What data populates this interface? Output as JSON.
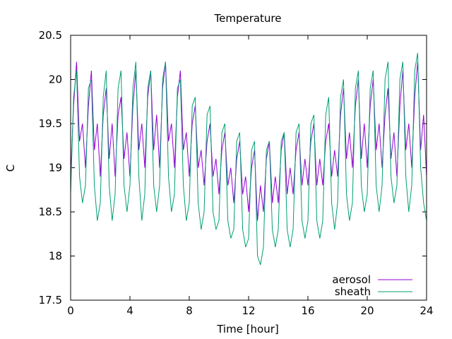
{
  "chart_data": {
    "type": "line",
    "title": "Temperature",
    "xlabel": "Time [hour]",
    "ylabel": "C",
    "xlim": [
      0,
      24
    ],
    "ylim": [
      17.5,
      20.5
    ],
    "xticks": [
      0,
      4,
      8,
      12,
      16,
      20,
      24
    ],
    "yticks": [
      17.5,
      18,
      18.5,
      19,
      19.5,
      20,
      20.5
    ],
    "xtick_labels": [
      "0",
      "4",
      "8",
      "12",
      "16",
      "20",
      "24"
    ],
    "ytick_labels": [
      "17.5",
      "18",
      "18.5",
      "19",
      "19.5",
      "20",
      "20.5"
    ],
    "grid": false,
    "legend_position": "bottom-right",
    "series": [
      {
        "name": "aerosol",
        "color": "#9400d3",
        "x": [
          0.0,
          0.2,
          0.4,
          0.6,
          0.8,
          1.0,
          1.2,
          1.4,
          1.6,
          1.8,
          2.0,
          2.2,
          2.4,
          2.6,
          2.8,
          3.0,
          3.2,
          3.4,
          3.6,
          3.8,
          4.0,
          4.2,
          4.4,
          4.6,
          4.8,
          5.0,
          5.2,
          5.4,
          5.6,
          5.8,
          6.0,
          6.2,
          6.4,
          6.6,
          6.8,
          7.0,
          7.2,
          7.4,
          7.6,
          7.8,
          8.0,
          8.2,
          8.4,
          8.6,
          8.8,
          9.0,
          9.2,
          9.4,
          9.6,
          9.8,
          10.0,
          10.2,
          10.4,
          10.6,
          10.8,
          11.0,
          11.2,
          11.4,
          11.6,
          11.8,
          12.0,
          12.2,
          12.4,
          12.6,
          12.8,
          13.0,
          13.2,
          13.4,
          13.6,
          13.8,
          14.0,
          14.2,
          14.4,
          14.6,
          14.8,
          15.0,
          15.2,
          15.4,
          15.6,
          15.8,
          16.0,
          16.2,
          16.4,
          16.6,
          16.8,
          17.0,
          17.2,
          17.4,
          17.6,
          17.8,
          18.0,
          18.2,
          18.4,
          18.6,
          18.8,
          19.0,
          19.2,
          19.4,
          19.6,
          19.8,
          20.0,
          20.2,
          20.4,
          20.6,
          20.8,
          21.0,
          21.2,
          21.4,
          21.6,
          21.8,
          22.0,
          22.2,
          22.4,
          22.6,
          22.8,
          23.0,
          23.2,
          23.4,
          23.6,
          23.8,
          24.0
        ],
        "values": [
          18.9,
          19.7,
          20.2,
          19.3,
          19.5,
          19.0,
          19.7,
          20.1,
          19.2,
          19.5,
          18.9,
          19.6,
          19.9,
          19.1,
          19.5,
          18.9,
          19.6,
          19.8,
          19.1,
          19.4,
          18.9,
          19.7,
          20.1,
          19.2,
          19.5,
          19.0,
          19.8,
          20.1,
          19.2,
          19.6,
          19.0,
          19.9,
          20.2,
          19.3,
          19.5,
          19.0,
          19.8,
          20.1,
          19.2,
          19.4,
          18.9,
          19.5,
          19.7,
          19.0,
          19.2,
          18.8,
          19.3,
          19.5,
          18.9,
          19.1,
          18.7,
          19.2,
          19.4,
          18.8,
          19.0,
          18.6,
          19.1,
          19.3,
          18.7,
          18.9,
          18.5,
          19.0,
          19.2,
          18.4,
          18.8,
          18.5,
          19.1,
          19.3,
          18.6,
          18.9,
          18.6,
          19.2,
          19.4,
          18.7,
          19.0,
          18.7,
          19.2,
          19.4,
          18.8,
          19.1,
          18.8,
          19.3,
          19.5,
          18.8,
          19.1,
          18.8,
          19.3,
          19.5,
          18.9,
          19.2,
          18.9,
          19.6,
          19.9,
          19.1,
          19.4,
          19.0,
          19.7,
          20.0,
          19.1,
          19.5,
          19.0,
          19.7,
          20.0,
          19.2,
          19.5,
          19.0,
          19.6,
          19.9,
          19.1,
          19.4,
          18.9,
          19.7,
          20.1,
          19.2,
          19.5,
          19.0,
          19.8,
          20.2,
          19.2,
          19.6,
          18.9
        ]
      },
      {
        "name": "sheath",
        "color": "#009e73",
        "x": [
          0.0,
          0.2,
          0.4,
          0.6,
          0.8,
          1.0,
          1.2,
          1.4,
          1.6,
          1.8,
          2.0,
          2.2,
          2.4,
          2.6,
          2.8,
          3.0,
          3.2,
          3.4,
          3.6,
          3.8,
          4.0,
          4.2,
          4.4,
          4.6,
          4.8,
          5.0,
          5.2,
          5.4,
          5.6,
          5.8,
          6.0,
          6.2,
          6.4,
          6.6,
          6.8,
          7.0,
          7.2,
          7.4,
          7.6,
          7.8,
          8.0,
          8.2,
          8.4,
          8.6,
          8.8,
          9.0,
          9.2,
          9.4,
          9.6,
          9.8,
          10.0,
          10.2,
          10.4,
          10.6,
          10.8,
          11.0,
          11.2,
          11.4,
          11.6,
          11.8,
          12.0,
          12.2,
          12.4,
          12.6,
          12.8,
          13.0,
          13.2,
          13.4,
          13.6,
          13.8,
          14.0,
          14.2,
          14.4,
          14.6,
          14.8,
          15.0,
          15.2,
          15.4,
          15.6,
          15.8,
          16.0,
          16.2,
          16.4,
          16.6,
          16.8,
          17.0,
          17.2,
          17.4,
          17.6,
          17.8,
          18.0,
          18.2,
          18.4,
          18.6,
          18.8,
          19.0,
          19.2,
          19.4,
          19.6,
          19.8,
          20.0,
          20.2,
          20.4,
          20.6,
          20.8,
          21.0,
          21.2,
          21.4,
          21.6,
          21.8,
          22.0,
          22.2,
          22.4,
          22.6,
          22.8,
          23.0,
          23.2,
          23.4,
          23.6,
          23.8,
          24.0
        ],
        "values": [
          18.7,
          19.8,
          20.1,
          18.9,
          18.6,
          18.8,
          19.9,
          20.0,
          18.8,
          18.4,
          18.6,
          19.8,
          20.1,
          18.8,
          18.4,
          18.7,
          19.9,
          20.1,
          18.8,
          18.5,
          18.8,
          19.9,
          20.2,
          18.9,
          18.4,
          18.7,
          19.9,
          20.1,
          18.8,
          18.5,
          18.8,
          20.0,
          20.2,
          18.9,
          18.5,
          18.7,
          19.9,
          20.0,
          18.8,
          18.4,
          18.6,
          19.7,
          19.8,
          18.6,
          18.3,
          18.5,
          19.6,
          19.7,
          18.5,
          18.3,
          18.4,
          19.4,
          19.5,
          18.4,
          18.2,
          18.3,
          19.3,
          19.4,
          18.3,
          18.1,
          18.2,
          19.2,
          19.3,
          18.0,
          17.9,
          18.1,
          19.2,
          19.3,
          18.3,
          18.1,
          18.3,
          19.3,
          19.4,
          18.3,
          18.1,
          18.3,
          19.4,
          19.5,
          18.4,
          18.2,
          18.4,
          19.5,
          19.6,
          18.4,
          18.2,
          18.4,
          19.6,
          19.8,
          18.6,
          18.3,
          18.6,
          19.8,
          20.0,
          18.7,
          18.4,
          18.6,
          19.9,
          20.1,
          18.8,
          18.5,
          18.7,
          19.9,
          20.1,
          18.8,
          18.5,
          18.8,
          20.0,
          20.2,
          18.9,
          18.6,
          18.8,
          20.0,
          20.2,
          18.9,
          18.5,
          18.8,
          20.1,
          20.3,
          19.0,
          18.6,
          18.4
        ]
      }
    ]
  }
}
